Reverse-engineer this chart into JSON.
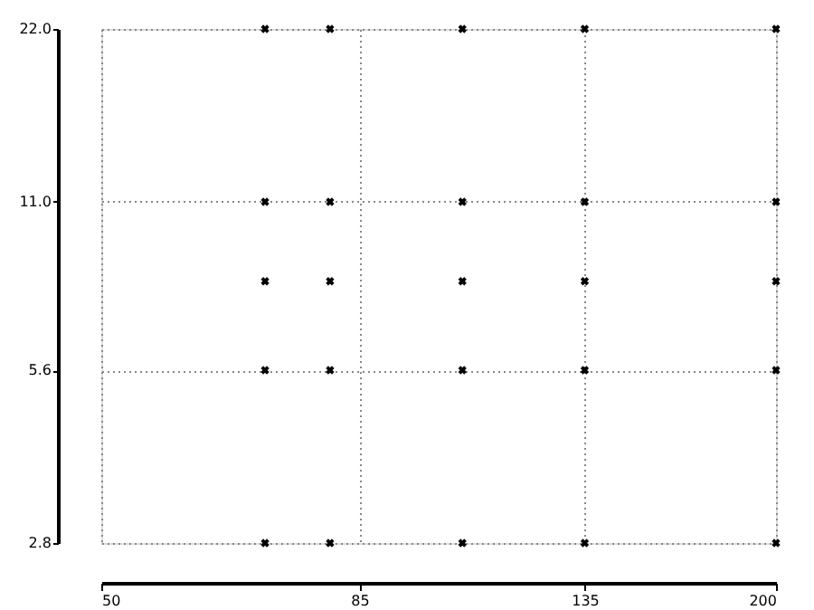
{
  "chart_data": {
    "type": "scatter",
    "series": [
      {
        "color": "#000000",
        "x": [
          70,
          70,
          70,
          70,
          70,
          80,
          80,
          80,
          80,
          80,
          105,
          105,
          105,
          105,
          105,
          135,
          135,
          135,
          135,
          135,
          200,
          200,
          200,
          200,
          200
        ],
        "values": [
          2.8,
          5.6,
          8,
          11,
          22,
          2.8,
          5.6,
          8,
          11,
          22,
          2.8,
          5.6,
          8,
          11,
          22,
          2.8,
          5.6,
          8,
          11,
          22,
          2.8,
          5.6,
          8,
          11,
          22
        ]
      }
    ],
    "xlim": [
      50,
      200
    ],
    "xticks": [
      50,
      85,
      135,
      200
    ],
    "ylim": [
      2.8,
      22
    ],
    "yticks": [
      {
        "value": 2.8,
        "label": "2.8"
      },
      {
        "value": 5.6,
        "label": "5.6"
      },
      {
        "value": 11,
        "label": "11.0"
      },
      {
        "value": 22,
        "label": "22.0"
      }
    ],
    "log": "xy",
    "grid": true,
    "marker": "cross"
  }
}
